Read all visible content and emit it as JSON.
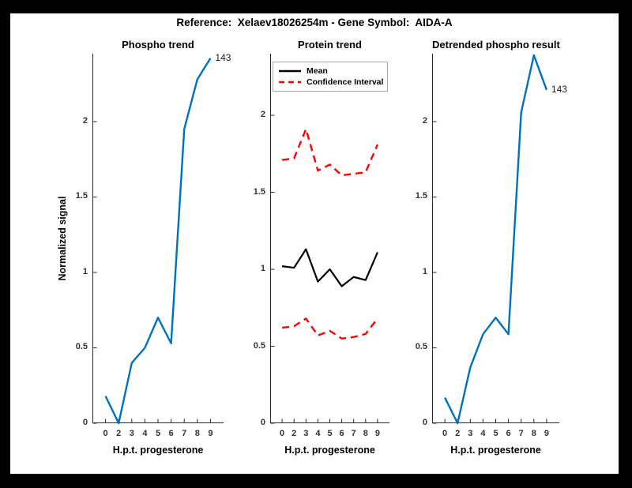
{
  "figure": {
    "title": "Reference:  Xelaev18026254m - Gene Symbol:  AIDA-A",
    "background": "#ffffff",
    "frame_color": "#000000"
  },
  "colors": {
    "blue": "#0072BD",
    "red": "#ff0000",
    "black": "#000000",
    "axis": "#262626"
  },
  "chart_data": [
    {
      "type": "line",
      "title": "Phospho trend",
      "xlabel": "H.p.t. progesterone",
      "ylabel": "Normalized signal",
      "x_ticklabels": [
        "0",
        "2",
        "3",
        "4",
        "5",
        "6",
        "7",
        "8",
        "9"
      ],
      "y_ticks": [
        0,
        0.5,
        1,
        1.5,
        2
      ],
      "ylim": [
        0,
        2.45
      ],
      "grid": false,
      "series": [
        {
          "name": "phospho-trend",
          "color": "#0072BD",
          "style": "solid",
          "width": 2.4,
          "values": [
            0.18,
            0,
            0.4,
            0.5,
            0.7,
            0.53,
            1.95,
            2.28,
            2.42
          ],
          "end_label": "143"
        }
      ]
    },
    {
      "type": "line",
      "title": "Protein trend",
      "xlabel": "H.p.t. progesterone",
      "ylabel": "",
      "x_ticklabels": [
        "0",
        "2",
        "3",
        "4",
        "5",
        "6",
        "7",
        "8",
        "9"
      ],
      "y_ticks": [
        0,
        0.5,
        1,
        1.5,
        2
      ],
      "ylim": [
        0,
        2.4
      ],
      "grid": false,
      "legend": {
        "position": "top",
        "entries": [
          {
            "label": "Mean",
            "color": "#000000",
            "style": "solid"
          },
          {
            "label": "Confidence Interval",
            "color": "#ff0000",
            "style": "dashed"
          }
        ]
      },
      "series": [
        {
          "name": "confidence-upper",
          "color": "#ff0000",
          "style": "dashed",
          "width": 2.4,
          "values": [
            1.71,
            1.72,
            1.91,
            1.64,
            1.68,
            1.61,
            1.62,
            1.63,
            1.81
          ]
        },
        {
          "name": "mean",
          "color": "#000000",
          "style": "solid",
          "width": 2.2,
          "values": [
            1.02,
            1.01,
            1.13,
            0.92,
            1.0,
            0.89,
            0.95,
            0.93,
            1.11
          ]
        },
        {
          "name": "confidence-lower",
          "color": "#ff0000",
          "style": "dashed",
          "width": 2.4,
          "values": [
            0.62,
            0.63,
            0.68,
            0.57,
            0.6,
            0.55,
            0.56,
            0.58,
            0.68
          ]
        }
      ]
    },
    {
      "type": "line",
      "title": "Detrended phospho result",
      "xlabel": "H.p.t. progesterone",
      "ylabel": "",
      "x_ticklabels": [
        "0",
        "2",
        "3",
        "4",
        "5",
        "6",
        "7",
        "8",
        "9"
      ],
      "y_ticks": [
        0,
        0.5,
        1,
        1.5,
        2
      ],
      "ylim": [
        0,
        2.45
      ],
      "grid": false,
      "series": [
        {
          "name": "detrended-phospho",
          "color": "#0072BD",
          "style": "solid",
          "width": 2.4,
          "values": [
            0.17,
            0,
            0.37,
            0.59,
            0.7,
            0.59,
            2.06,
            2.44,
            2.21
          ],
          "end_label": "143"
        }
      ]
    }
  ]
}
